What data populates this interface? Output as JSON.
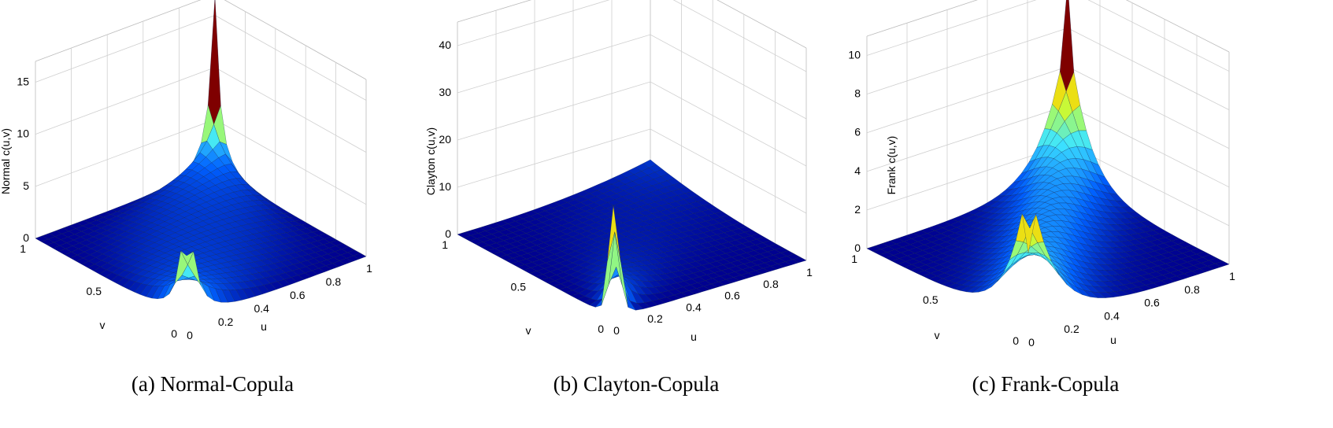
{
  "chart_data": [
    {
      "type": "surface",
      "caption": "(a) Normal-Copula",
      "zlabel": "Normal c(u,v)",
      "xlabel": "u",
      "ylabel": "v",
      "zlim": [
        0,
        17
      ],
      "z_ticks": [
        "0",
        "5",
        "10",
        "15"
      ],
      "u_ticks": [
        "0",
        "0.2",
        "0.4",
        "0.6",
        "0.8",
        "1"
      ],
      "v_ticks": [
        "0",
        "0.5",
        "1"
      ],
      "peaks": [
        {
          "at": "(u,v)=(1,1)",
          "value": 16.8
        },
        {
          "at": "(u,v)=(0,0)",
          "value": 6.5
        }
      ]
    },
    {
      "type": "surface",
      "caption": "(b) Clayton-Copula",
      "zlabel": "Clayton c(u,v)",
      "xlabel": "u",
      "ylabel": "v",
      "zlim": [
        0,
        45
      ],
      "z_ticks": [
        "0",
        "10",
        "20",
        "30",
        "40"
      ],
      "u_ticks": [
        "0",
        "0.2",
        "0.4",
        "0.6",
        "0.8",
        "1"
      ],
      "v_ticks": [
        "0",
        "0.5",
        "1"
      ],
      "peaks": [
        {
          "at": "(u,v)=(0,0)",
          "value": 24
        }
      ]
    },
    {
      "type": "surface",
      "caption": "(c) Frank-Copula",
      "zlabel": "Frank c(u,v)",
      "xlabel": "u",
      "ylabel": "v",
      "zlim": [
        0,
        11
      ],
      "z_ticks": [
        "0",
        "2",
        "4",
        "6",
        "8",
        "10"
      ],
      "u_ticks": [
        "0",
        "0.2",
        "0.4",
        "0.6",
        "0.8",
        "1"
      ],
      "v_ticks": [
        "0",
        "0.5",
        "1"
      ],
      "peaks": [
        {
          "at": "(u,v)=(1,1)",
          "value": 10.3
        },
        {
          "at": "(u,v)=(0,0)",
          "value": 4.0
        }
      ]
    }
  ],
  "colormap": [
    "#00008f",
    "#0060ff",
    "#3ee6ff",
    "#bfff40",
    "#ffd000",
    "#ff5000",
    "#7f0000"
  ]
}
